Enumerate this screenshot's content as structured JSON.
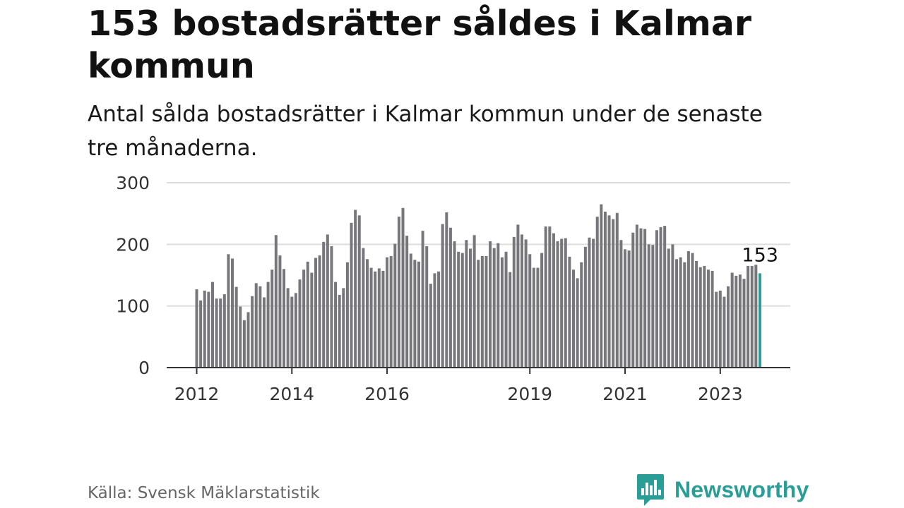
{
  "header": {
    "title": "153 bostadsrätter såldes i Kalmar kommun",
    "subtitle": "Antal sålda bostadsrätter i Kalmar kommun under de senaste tre månaderna."
  },
  "footer": {
    "source": "Källa: Svensk Mäklarstatistik",
    "brand": "Newsworthy",
    "brand_icon": "newsworthy-logo-icon"
  },
  "colors": {
    "bar": "#77767b",
    "highlight": "#2a9d96",
    "grid": "#dddddd",
    "axis": "#333333",
    "brand": "#2a9d96"
  },
  "chart_data": {
    "type": "bar",
    "title": "153 bostadsrätter såldes i Kalmar kommun",
    "subtitle": "Antal sålda bostadsrätter i Kalmar kommun under de senaste tre månaderna.",
    "xlabel": "",
    "ylabel": "",
    "ylim": [
      0,
      300
    ],
    "yticks": [
      0,
      100,
      200,
      300
    ],
    "grid": true,
    "xtick_labels": [
      {
        "label": "2012",
        "index": 0
      },
      {
        "label": "2014",
        "index": 24
      },
      {
        "label": "2016",
        "index": 48
      },
      {
        "label": "2019",
        "index": 84
      },
      {
        "label": "2021",
        "index": 108
      },
      {
        "label": "2023",
        "index": 132
      }
    ],
    "highlight_index": 142,
    "highlight_label": "153",
    "values": [
      127,
      109,
      125,
      123,
      139,
      112,
      112,
      119,
      184,
      177,
      131,
      99,
      77,
      90,
      116,
      137,
      132,
      114,
      139,
      159,
      215,
      182,
      160,
      129,
      115,
      121,
      143,
      159,
      172,
      154,
      178,
      182,
      204,
      216,
      197,
      139,
      118,
      129,
      171,
      235,
      256,
      247,
      194,
      176,
      162,
      156,
      161,
      157,
      179,
      181,
      201,
      245,
      259,
      214,
      185,
      175,
      172,
      222,
      197,
      136,
      153,
      156,
      233,
      252,
      227,
      205,
      188,
      186,
      207,
      193,
      215,
      175,
      181,
      181,
      205,
      194,
      202,
      179,
      188,
      155,
      212,
      232,
      216,
      208,
      184,
      162,
      162,
      186,
      229,
      229,
      218,
      205,
      209,
      210,
      180,
      159,
      145,
      171,
      196,
      211,
      209,
      245,
      265,
      253,
      247,
      241,
      251,
      207,
      192,
      190,
      219,
      232,
      226,
      225,
      200,
      199,
      223,
      228,
      230,
      193,
      200,
      176,
      179,
      171,
      189,
      186,
      173,
      163,
      165,
      159,
      157,
      123,
      125,
      115,
      132,
      154,
      149,
      151,
      144,
      165,
      165,
      167,
      153
    ]
  }
}
